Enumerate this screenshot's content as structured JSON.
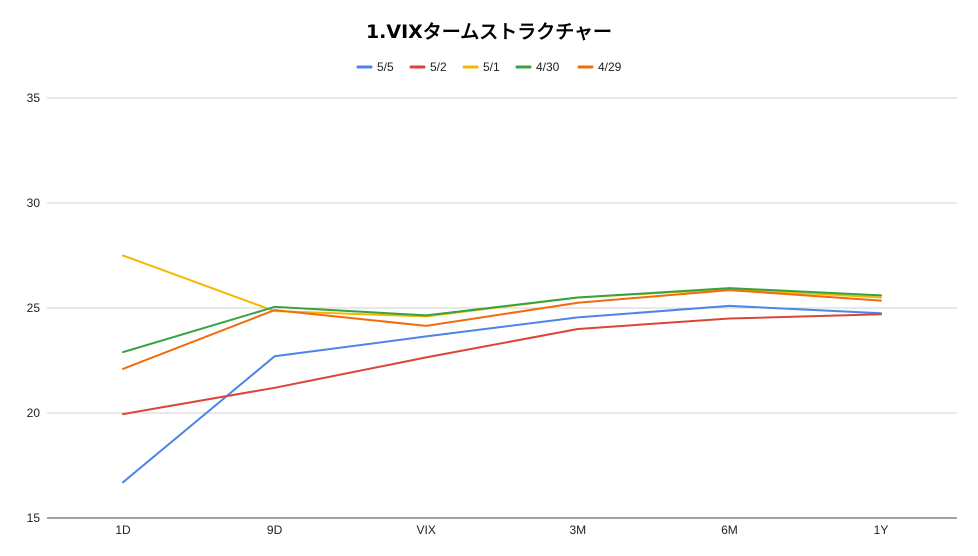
{
  "chart_data": {
    "type": "line",
    "title": "1.VIXタームストラクチャー",
    "xlabel": "",
    "ylabel": "",
    "categories": [
      "1D",
      "9D",
      "VIX",
      "3M",
      "6M",
      "1Y"
    ],
    "ylim": [
      15,
      35
    ],
    "yticks": [
      "15",
      "20",
      "25",
      "30",
      "35"
    ],
    "grid": true,
    "legend_position": "top",
    "series": [
      {
        "name": "5/5",
        "color": "#4a86e8",
        "values": [
          16.7,
          22.7,
          23.65,
          24.55,
          25.1,
          24.75
        ]
      },
      {
        "name": "5/2",
        "color": "#dc4535",
        "values": [
          19.95,
          21.2,
          22.65,
          24.0,
          24.5,
          24.7
        ]
      },
      {
        "name": "5/1",
        "color": "#f5b800",
        "values": [
          27.5,
          24.85,
          24.6,
          25.5,
          25.9,
          25.5
        ]
      },
      {
        "name": "4/30",
        "color": "#34a343",
        "values": [
          22.9,
          25.05,
          24.65,
          25.5,
          25.95,
          25.6
        ]
      },
      {
        "name": "4/29",
        "color": "#f26b0f",
        "values": [
          22.1,
          24.9,
          24.15,
          25.25,
          25.85,
          25.35
        ]
      }
    ]
  }
}
